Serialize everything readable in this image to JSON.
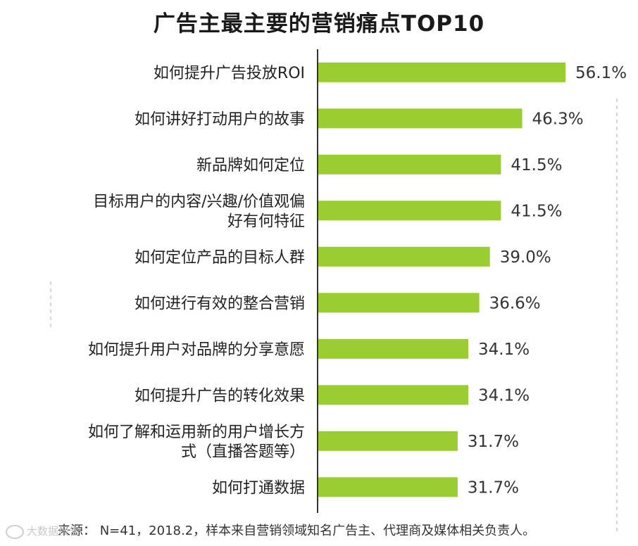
{
  "chart_data": {
    "type": "bar",
    "orientation": "horizontal",
    "title": "广告主最主要的营销痛点TOP10",
    "categories": [
      "如何提升广告投放ROI",
      "如何讲好打动用户的故事",
      "新品牌如何定位",
      "目标用户的内容/兴趣/价值观偏好有何特征",
      "如何定位产品的目标人群",
      "如何进行有效的整合营销",
      "如何提升用户对品牌的分享意愿",
      "如何提升广告的转化效果",
      "如何了解和运用新的用户增长方式（直播答题等）",
      "如何打通数据"
    ],
    "category_lines": [
      [
        "如何提升广告投放ROI"
      ],
      [
        "如何讲好打动用户的故事"
      ],
      [
        "新品牌如何定位"
      ],
      [
        "目标用户的内容/兴趣/价值观偏",
        "好有何特征"
      ],
      [
        "如何定位产品的目标人群"
      ],
      [
        "如何进行有效的整合营销"
      ],
      [
        "如何提升用户对品牌的分享意愿"
      ],
      [
        "如何提升广告的转化效果"
      ],
      [
        "如何了解和运用新的用户增长方",
        "式（直播答题等）"
      ],
      [
        "如何打通数据"
      ]
    ],
    "values": [
      56.1,
      46.3,
      41.5,
      41.5,
      39.0,
      36.6,
      34.1,
      34.1,
      31.7,
      31.7
    ],
    "value_labels": [
      "56.1%",
      "46.3%",
      "41.5%",
      "41.5%",
      "39.0%",
      "36.6%",
      "34.1%",
      "34.1%",
      "31.7%",
      "31.7%"
    ],
    "unit": "%",
    "xlim": [
      0,
      60
    ],
    "grid": false,
    "legend": "none",
    "colors": {
      "bar": "#9acd32",
      "axis": "#333333",
      "dashed_guide": "#c8c8c8"
    }
  },
  "footer": {
    "source": "来源：  N=41，2018.2，样本来自营销领域知名广告主、代理商及媒体相关负责人。",
    "watermark": "大数据报告"
  }
}
